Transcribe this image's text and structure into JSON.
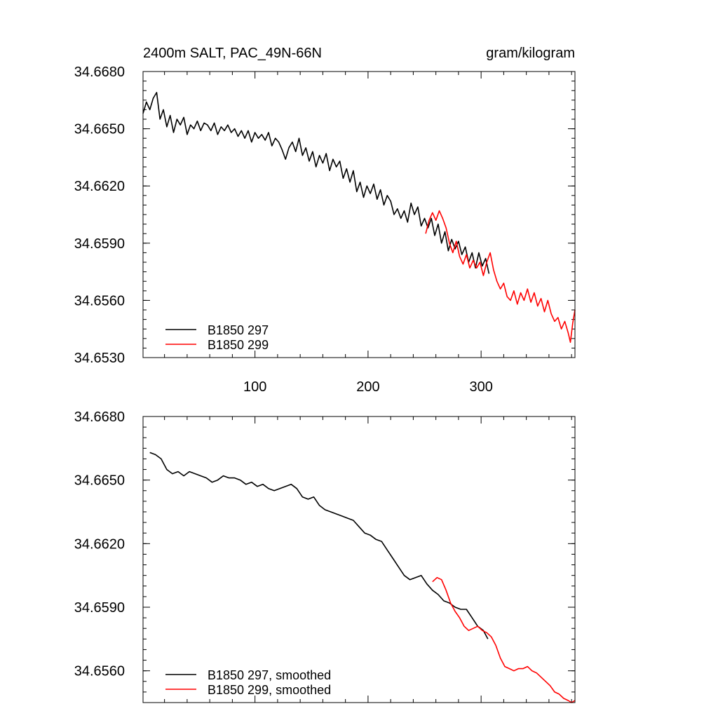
{
  "colors": {
    "black": "#000000",
    "red": "#ff0000"
  },
  "chart_data": [
    {
      "type": "line",
      "title_left": "2400m SALT, PAC_49N-66N",
      "title_right": "gram/kilogram",
      "xlim": [
        1,
        383
      ],
      "ylim": [
        34.653,
        34.668
      ],
      "yticks": [
        "34.6530",
        "34.6560",
        "34.6590",
        "34.6620",
        "34.6650",
        "34.6680"
      ],
      "xticks": [
        "100",
        "200",
        "300"
      ],
      "series": [
        {
          "name": "B1850 297",
          "color": "#000000",
          "points": [
            [
              1,
              34.6658
            ],
            [
              4,
              34.6664
            ],
            [
              7,
              34.666
            ],
            [
              10,
              34.6666
            ],
            [
              13,
              34.6669
            ],
            [
              16,
              34.6655
            ],
            [
              19,
              34.666
            ],
            [
              22,
              34.6651
            ],
            [
              25,
              34.6657
            ],
            [
              28,
              34.6648
            ],
            [
              31,
              34.6655
            ],
            [
              34,
              34.6652
            ],
            [
              37,
              34.6656
            ],
            [
              40,
              34.6647
            ],
            [
              43,
              34.6652
            ],
            [
              46,
              34.665
            ],
            [
              49,
              34.6654
            ],
            [
              52,
              34.6649
            ],
            [
              55,
              34.6653
            ],
            [
              58,
              34.6652
            ],
            [
              61,
              34.6649
            ],
            [
              64,
              34.6653
            ],
            [
              67,
              34.6647
            ],
            [
              70,
              34.6651
            ],
            [
              73,
              34.6649
            ],
            [
              76,
              34.6652
            ],
            [
              79,
              34.6648
            ],
            [
              82,
              34.665
            ],
            [
              85,
              34.6646
            ],
            [
              88,
              34.6649
            ],
            [
              91,
              34.6645
            ],
            [
              94,
              34.6649
            ],
            [
              97,
              34.6643
            ],
            [
              100,
              34.6648
            ],
            [
              103,
              34.6645
            ],
            [
              106,
              34.6647
            ],
            [
              109,
              34.6644
            ],
            [
              112,
              34.6648
            ],
            [
              115,
              34.6641
            ],
            [
              118,
              34.6645
            ],
            [
              121,
              34.6643
            ],
            [
              124,
              34.6639
            ],
            [
              127,
              34.6634
            ],
            [
              130,
              34.664
            ],
            [
              133,
              34.6643
            ],
            [
              136,
              34.6638
            ],
            [
              139,
              34.6645
            ],
            [
              142,
              34.6636
            ],
            [
              145,
              34.664
            ],
            [
              148,
              34.6633
            ],
            [
              151,
              34.6638
            ],
            [
              154,
              34.663
            ],
            [
              157,
              34.6636
            ],
            [
              160,
              34.6632
            ],
            [
              163,
              34.6637
            ],
            [
              166,
              34.6628
            ],
            [
              169,
              34.6634
            ],
            [
              172,
              34.663
            ],
            [
              175,
              34.6633
            ],
            [
              178,
              34.6624
            ],
            [
              181,
              34.6629
            ],
            [
              184,
              34.6622
            ],
            [
              187,
              34.6628
            ],
            [
              190,
              34.6617
            ],
            [
              193,
              34.6622
            ],
            [
              196,
              34.6614
            ],
            [
              199,
              34.662
            ],
            [
              202,
              34.6616
            ],
            [
              205,
              34.6621
            ],
            [
              208,
              34.6613
            ],
            [
              211,
              34.6618
            ],
            [
              214,
              34.661
            ],
            [
              217,
              34.6615
            ],
            [
              220,
              34.6612
            ],
            [
              223,
              34.6605
            ],
            [
              226,
              34.6608
            ],
            [
              229,
              34.6603
            ],
            [
              232,
              34.6607
            ],
            [
              235,
              34.6601
            ],
            [
              238,
              34.6611
            ],
            [
              241,
              34.6605
            ],
            [
              244,
              34.6609
            ],
            [
              247,
              34.6599
            ],
            [
              250,
              34.6603
            ],
            [
              253,
              34.6598
            ],
            [
              256,
              34.6603
            ],
            [
              259,
              34.6594
            ],
            [
              262,
              34.66
            ],
            [
              265,
              34.659
            ],
            [
              268,
              34.6596
            ],
            [
              271,
              34.6586
            ],
            [
              274,
              34.6592
            ],
            [
              277,
              34.6587
            ],
            [
              280,
              34.6591
            ],
            [
              283,
              34.6584
            ],
            [
              286,
              34.6588
            ],
            [
              289,
              34.658
            ],
            [
              292,
              34.6585
            ],
            [
              295,
              34.6577
            ],
            [
              298,
              34.6585
            ],
            [
              301,
              34.6578
            ],
            [
              304,
              34.6582
            ],
            [
              307,
              34.6574
            ]
          ]
        },
        {
          "name": "B1850 299",
          "color": "#ff0000",
          "points": [
            [
              251,
              34.6595
            ],
            [
              254,
              34.6602
            ],
            [
              257,
              34.6606
            ],
            [
              260,
              34.6602
            ],
            [
              263,
              34.6607
            ],
            [
              266,
              34.6603
            ],
            [
              269,
              34.6598
            ],
            [
              272,
              34.659
            ],
            [
              275,
              34.6585
            ],
            [
              278,
              34.6591
            ],
            [
              281,
              34.6583
            ],
            [
              284,
              34.6579
            ],
            [
              287,
              34.6584
            ],
            [
              290,
              34.6577
            ],
            [
              293,
              34.6581
            ],
            [
              296,
              34.6577
            ],
            [
              299,
              34.658
            ],
            [
              302,
              34.6573
            ],
            [
              305,
              34.658
            ],
            [
              308,
              34.6585
            ],
            [
              311,
              34.6576
            ],
            [
              314,
              34.657
            ],
            [
              317,
              34.6566
            ],
            [
              320,
              34.6569
            ],
            [
              323,
              34.6562
            ],
            [
              326,
              34.656
            ],
            [
              329,
              34.6565
            ],
            [
              332,
              34.6558
            ],
            [
              335,
              34.6564
            ],
            [
              338,
              34.656
            ],
            [
              341,
              34.6566
            ],
            [
              344,
              34.6559
            ],
            [
              347,
              34.6564
            ],
            [
              350,
              34.6557
            ],
            [
              353,
              34.6561
            ],
            [
              356,
              34.6554
            ],
            [
              359,
              34.656
            ],
            [
              362,
              34.6553
            ],
            [
              365,
              34.6549
            ],
            [
              368,
              34.6551
            ],
            [
              371,
              34.6545
            ],
            [
              374,
              34.6549
            ],
            [
              377,
              34.6543
            ],
            [
              379,
              34.6538
            ],
            [
              381,
              34.6548
            ],
            [
              383,
              34.6555
            ]
          ]
        }
      ],
      "legend": [
        {
          "label": "B1850 297",
          "color": "#000000"
        },
        {
          "label": "B1850 299",
          "color": "#ff0000"
        }
      ]
    },
    {
      "type": "line",
      "xlim": [
        1,
        383
      ],
      "ylim": [
        34.6545,
        34.668
      ],
      "yticks": [
        "34.6560",
        "34.6590",
        "34.6620",
        "34.6650",
        "34.6680"
      ],
      "series": [
        {
          "name": "B1850 297, smoothed",
          "color": "#000000",
          "points": [
            [
              7,
              34.6663
            ],
            [
              12,
              34.6662
            ],
            [
              17,
              34.666
            ],
            [
              22,
              34.6655
            ],
            [
              27,
              34.6653
            ],
            [
              32,
              34.6654
            ],
            [
              37,
              34.6652
            ],
            [
              42,
              34.6654
            ],
            [
              47,
              34.6653
            ],
            [
              52,
              34.6652
            ],
            [
              57,
              34.6651
            ],
            [
              62,
              34.6649
            ],
            [
              67,
              34.665
            ],
            [
              72,
              34.6652
            ],
            [
              77,
              34.6651
            ],
            [
              82,
              34.6651
            ],
            [
              87,
              34.665
            ],
            [
              92,
              34.6648
            ],
            [
              97,
              34.6649
            ],
            [
              102,
              34.6647
            ],
            [
              107,
              34.6648
            ],
            [
              112,
              34.6646
            ],
            [
              117,
              34.6645
            ],
            [
              122,
              34.6646
            ],
            [
              127,
              34.6647
            ],
            [
              132,
              34.6648
            ],
            [
              137,
              34.6646
            ],
            [
              142,
              34.6642
            ],
            [
              147,
              34.6641
            ],
            [
              152,
              34.6642
            ],
            [
              157,
              34.6638
            ],
            [
              162,
              34.6636
            ],
            [
              167,
              34.6635
            ],
            [
              172,
              34.6634
            ],
            [
              177,
              34.6633
            ],
            [
              182,
              34.6632
            ],
            [
              187,
              34.6631
            ],
            [
              192,
              34.6628
            ],
            [
              197,
              34.6625
            ],
            [
              202,
              34.6624
            ],
            [
              207,
              34.6622
            ],
            [
              212,
              34.6621
            ],
            [
              217,
              34.6617
            ],
            [
              222,
              34.6613
            ],
            [
              227,
              34.6609
            ],
            [
              232,
              34.6605
            ],
            [
              237,
              34.6603
            ],
            [
              242,
              34.6604
            ],
            [
              247,
              34.6605
            ],
            [
              252,
              34.6601
            ],
            [
              257,
              34.6598
            ],
            [
              262,
              34.6596
            ],
            [
              267,
              34.6593
            ],
            [
              272,
              34.6592
            ],
            [
              277,
              34.659
            ],
            [
              282,
              34.6589
            ],
            [
              287,
              34.6589
            ],
            [
              292,
              34.6585
            ],
            [
              297,
              34.6581
            ],
            [
              302,
              34.6579
            ],
            [
              306,
              34.6575
            ]
          ]
        },
        {
          "name": "B1850 299, smoothed",
          "color": "#ff0000",
          "points": [
            [
              257,
              34.6602
            ],
            [
              261,
              34.6604
            ],
            [
              265,
              34.6603
            ],
            [
              269,
              34.6598
            ],
            [
              273,
              34.6592
            ],
            [
              277,
              34.6588
            ],
            [
              281,
              34.6585
            ],
            [
              285,
              34.6581
            ],
            [
              289,
              34.6579
            ],
            [
              293,
              34.658
            ],
            [
              297,
              34.6581
            ],
            [
              301,
              34.6579
            ],
            [
              305,
              34.6578
            ],
            [
              309,
              34.6576
            ],
            [
              313,
              34.6572
            ],
            [
              317,
              34.6566
            ],
            [
              321,
              34.6562
            ],
            [
              325,
              34.6561
            ],
            [
              329,
              34.656
            ],
            [
              333,
              34.6561
            ],
            [
              337,
              34.6561
            ],
            [
              341,
              34.6562
            ],
            [
              345,
              34.656
            ],
            [
              349,
              34.6559
            ],
            [
              353,
              34.6557
            ],
            [
              357,
              34.6555
            ],
            [
              361,
              34.6553
            ],
            [
              365,
              34.655
            ],
            [
              369,
              34.6549
            ],
            [
              373,
              34.6547
            ],
            [
              377,
              34.6546
            ],
            [
              380,
              34.6545
            ],
            [
              383,
              34.6546
            ]
          ]
        }
      ],
      "legend": [
        {
          "label": "B1850 297, smoothed",
          "color": "#000000"
        },
        {
          "label": "B1850 299, smoothed",
          "color": "#ff0000"
        }
      ]
    }
  ]
}
